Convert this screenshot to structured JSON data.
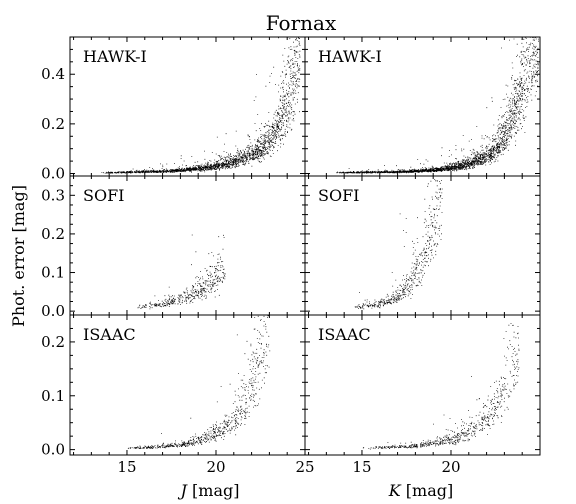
{
  "chart_data": {
    "type": "scatter",
    "title": "Fornax",
    "ylabel": "Phot. error [mag]",
    "columns": [
      {
        "band": "J",
        "xlabel_italic": "J",
        "xlabel_rest": " [mag]",
        "xlim": [
          11.8,
          25
        ],
        "xticks": [
          15,
          20,
          25
        ]
      },
      {
        "band": "K",
        "xlabel_italic": "K",
        "xlabel_rest": " [mag]",
        "xlim": [
          11.8,
          25
        ],
        "xticks": [
          15,
          20
        ]
      }
    ],
    "rows": [
      {
        "instrument": "HAWK-I",
        "ylim": [
          -0.01,
          0.55
        ],
        "yticks": [
          0.0,
          0.2,
          0.4
        ],
        "ytick_labels": [
          "0.0",
          "0.2",
          "0.4"
        ]
      },
      {
        "instrument": "SOFI",
        "ylim": [
          -0.01,
          0.35
        ],
        "yticks": [
          0.0,
          0.1,
          0.2,
          0.3
        ],
        "ytick_labels": [
          "0.0",
          "0.1",
          "0.2",
          "0.3"
        ]
      },
      {
        "instrument": "ISAAC",
        "ylim": [
          -0.01,
          0.25
        ],
        "yticks": [
          0.0,
          0.1,
          0.2
        ],
        "ytick_labels": [
          "0.0",
          "0.1",
          "0.2"
        ]
      }
    ],
    "panels": [
      {
        "row": 0,
        "col": 0,
        "mag_range": [
          13.5,
          24.7
        ],
        "trend": [
          [
            14,
            0.005
          ],
          [
            17,
            0.01
          ],
          [
            19,
            0.02
          ],
          [
            21,
            0.05
          ],
          [
            22.5,
            0.1
          ],
          [
            23.5,
            0.2
          ],
          [
            24.5,
            0.45
          ]
        ],
        "n_points": 2200
      },
      {
        "row": 0,
        "col": 1,
        "mag_range": [
          13.5,
          24.9
        ],
        "trend": [
          [
            14,
            0.005
          ],
          [
            17,
            0.008
          ],
          [
            19,
            0.015
          ],
          [
            21,
            0.04
          ],
          [
            22.5,
            0.1
          ],
          [
            23.5,
            0.25
          ],
          [
            24.5,
            0.52
          ]
        ],
        "n_points": 2600
      },
      {
        "row": 1,
        "col": 0,
        "mag_range": [
          15.5,
          20.5
        ],
        "trend": [
          [
            15.5,
            0.01
          ],
          [
            17,
            0.02
          ],
          [
            18.5,
            0.04
          ],
          [
            19.5,
            0.07
          ],
          [
            20.5,
            0.12
          ]
        ],
        "n_points": 420
      },
      {
        "row": 1,
        "col": 1,
        "mag_range": [
          14.5,
          19.5
        ],
        "trend": [
          [
            14.5,
            0.01
          ],
          [
            16,
            0.02
          ],
          [
            17.5,
            0.06
          ],
          [
            18.5,
            0.15
          ],
          [
            19.5,
            0.33
          ]
        ],
        "n_points": 520
      },
      {
        "row": 2,
        "col": 0,
        "mag_range": [
          15.0,
          23.0
        ],
        "trend": [
          [
            15,
            0.003
          ],
          [
            18,
            0.01
          ],
          [
            20,
            0.03
          ],
          [
            21.5,
            0.08
          ],
          [
            22.5,
            0.18
          ],
          [
            23,
            0.23
          ]
        ],
        "n_points": 700
      },
      {
        "row": 2,
        "col": 1,
        "mag_range": [
          15.0,
          23.8
        ],
        "trend": [
          [
            15,
            0.003
          ],
          [
            18,
            0.008
          ],
          [
            20,
            0.02
          ],
          [
            22,
            0.06
          ],
          [
            23,
            0.12
          ],
          [
            23.8,
            0.18
          ]
        ],
        "n_points": 650
      }
    ]
  }
}
